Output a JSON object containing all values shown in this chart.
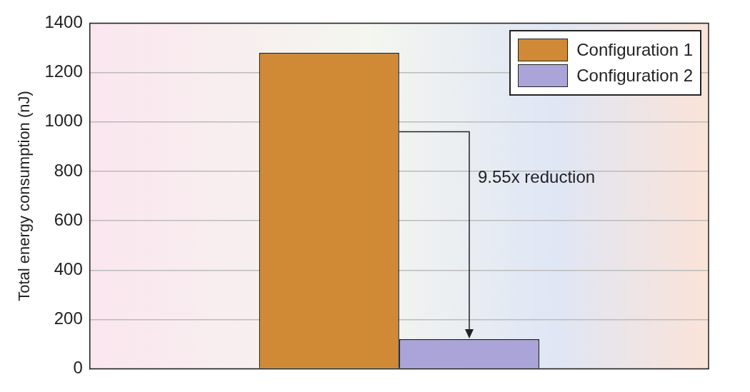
{
  "chart_data": {
    "type": "bar",
    "ylabel": "Total energy consumption (nJ)",
    "categories": [
      null
    ],
    "series": [
      {
        "name": "Configuration 1",
        "color": "#d08a35",
        "values": [
          1280
        ]
      },
      {
        "name": "Configuration 2",
        "color": "#aaa4d8",
        "values": [
          120
        ]
      }
    ],
    "ylim": [
      0,
      1400
    ],
    "yticks": [
      0,
      200,
      400,
      600,
      800,
      1000,
      1200,
      1400
    ],
    "grid": "y",
    "legend": "top right",
    "annotations": [
      "9.55x reduction"
    ]
  }
}
